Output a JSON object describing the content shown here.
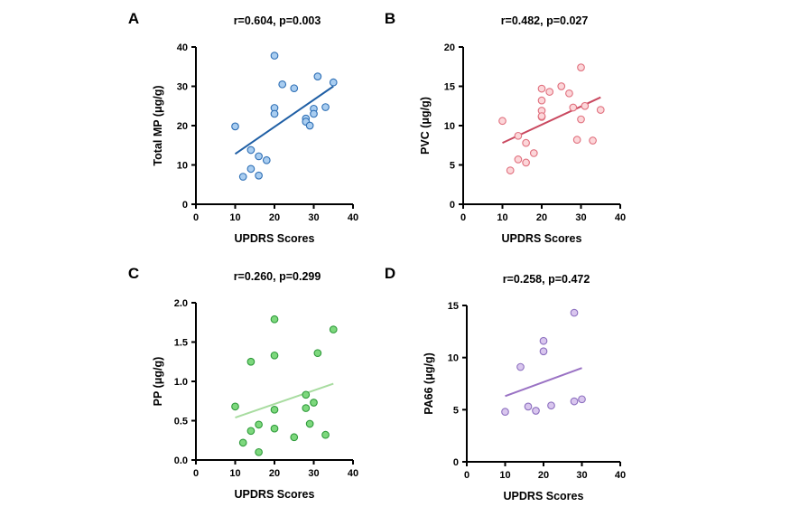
{
  "chart_data": [
    {
      "type": "scatter",
      "panel_label": "A",
      "title": "r=0.604, p=0.003",
      "xlabel": "UPDRS Scores",
      "ylabel": "Total MP (μg/g)",
      "xlim": [
        0,
        40
      ],
      "ylim": [
        0,
        40
      ],
      "xticks": [
        0,
        10,
        20,
        30,
        40
      ],
      "yticks": [
        0,
        10,
        20,
        30,
        40
      ],
      "x": [
        10,
        12,
        14,
        14,
        16,
        16,
        18,
        20,
        20,
        20,
        22,
        25,
        28,
        28,
        29,
        30,
        30,
        31,
        33,
        35
      ],
      "y": [
        19.8,
        7.0,
        9.0,
        13.8,
        12.2,
        7.3,
        11.2,
        24.5,
        23.0,
        37.8,
        30.5,
        29.5,
        21.8,
        21.0,
        20.0,
        24.3,
        23.0,
        32.5,
        24.7,
        31.0
      ],
      "fit_line": {
        "x": [
          10,
          35
        ],
        "y": [
          12.8,
          30.0
        ]
      },
      "marker_fill": "#a9cdf0",
      "marker_edge": "#2e6fb5",
      "line_color": "#1f5fa5"
    },
    {
      "type": "scatter",
      "panel_label": "B",
      "title": "r=0.482, p=0.027",
      "xlabel": "UPDRS Scores",
      "ylabel": "PVC (μg/g)",
      "xlim": [
        0,
        40
      ],
      "ylim": [
        0,
        20
      ],
      "xticks": [
        0,
        10,
        20,
        30,
        40
      ],
      "yticks": [
        0,
        5,
        10,
        15,
        20
      ],
      "x": [
        10,
        12,
        14,
        14,
        16,
        16,
        18,
        20,
        20,
        20,
        20,
        20,
        22,
        25,
        27,
        28,
        29,
        30,
        30,
        31,
        33,
        35
      ],
      "y": [
        10.6,
        4.3,
        5.7,
        8.7,
        7.8,
        5.3,
        6.5,
        14.7,
        13.2,
        11.9,
        11.1,
        11.2,
        14.3,
        15.0,
        14.1,
        12.3,
        8.2,
        17.4,
        10.8,
        12.5,
        8.1,
        12.0
      ],
      "fit_line": {
        "x": [
          10,
          35
        ],
        "y": [
          7.8,
          13.6
        ]
      },
      "marker_fill": "#fcd6d9",
      "marker_edge": "#e0707e",
      "line_color": "#c9485f"
    },
    {
      "type": "scatter",
      "panel_label": "C",
      "title": "r=0.260, p=0.299",
      "xlabel": "UPDRS Scores",
      "ylabel": "PP (μg/g)",
      "xlim": [
        0,
        40
      ],
      "ylim": [
        0,
        2.0
      ],
      "xticks": [
        0,
        10,
        20,
        30,
        40
      ],
      "yticks": [
        "0.0",
        "0.5",
        "1.0",
        "1.5",
        "2.0"
      ],
      "x": [
        10,
        12,
        14,
        14,
        16,
        16,
        20,
        20,
        20,
        20,
        25,
        28,
        28,
        29,
        30,
        31,
        33,
        35
      ],
      "y": [
        0.68,
        0.22,
        0.37,
        1.25,
        0.45,
        0.1,
        1.79,
        1.33,
        0.4,
        0.64,
        0.29,
        0.83,
        0.66,
        0.46,
        0.73,
        1.36,
        0.32,
        1.66
      ],
      "fit_line": {
        "x": [
          10,
          35
        ],
        "y": [
          0.54,
          0.97
        ]
      },
      "marker_fill": "#7dd87d",
      "marker_edge": "#2e9a3a",
      "line_color": "#a8dca0"
    },
    {
      "type": "scatter",
      "panel_label": "D",
      "title": "r=0.258, p=0.472",
      "xlabel": "UPDRS Scores",
      "ylabel": "PA66 (μg/g)",
      "xlim": [
        0,
        40
      ],
      "ylim": [
        0,
        15
      ],
      "xticks": [
        0,
        10,
        20,
        30,
        40
      ],
      "yticks": [
        0,
        5,
        10,
        15
      ],
      "x": [
        10,
        14,
        16,
        18,
        20,
        20,
        22,
        28,
        28,
        30
      ],
      "y": [
        4.8,
        9.1,
        5.3,
        4.9,
        11.6,
        10.6,
        5.4,
        14.3,
        5.8,
        6.0
      ],
      "fit_line": {
        "x": [
          10,
          30
        ],
        "y": [
          6.3,
          9.0
        ]
      },
      "marker_fill": "#d9c6ee",
      "marker_edge": "#8c6fbf",
      "line_color": "#9a72c4"
    }
  ]
}
